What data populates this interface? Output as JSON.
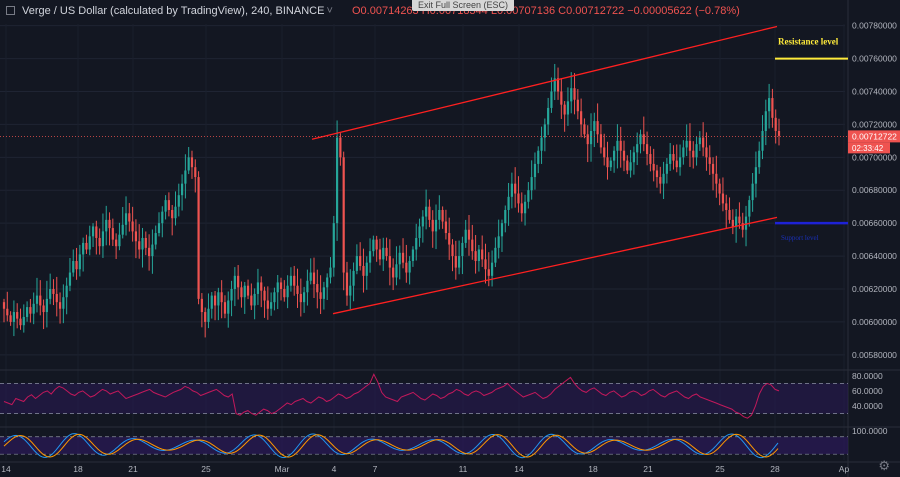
{
  "header": {
    "symbol": "Verge / US Dollar (calculated by TradingView), 240, BINANCE",
    "caret": "˅",
    "ohlc": "O0.00714263 H0.00718344 L0.00707136 C0.00712722 −0.00005622 (−0.78%)",
    "exit_fullscreen": "Exit Full Screen (ESC)"
  },
  "colors": {
    "background": "#131722",
    "up": "#26a69a",
    "down": "#ef5350",
    "channel": "#ff2020",
    "resistance": "#ffeb3b",
    "support": "#1e22d6",
    "rsi": "#c2185b",
    "stoch_k": "#2196f3",
    "stoch_d": "#ff9800",
    "band": "#2a1a55"
  },
  "chart_data": [
    {
      "type": "candlestick",
      "ylim": [
        0.00572,
        0.00781
      ],
      "y_ticks": [
        "0.00580000",
        "0.00600000",
        "0.00620000",
        "0.00640000",
        "0.00660000",
        "0.00680000",
        "0.00700000",
        "0.00720000",
        "0.00740000",
        "0.00760000",
        "0.00780000"
      ],
      "x_ticks": [
        "14",
        "18",
        "21",
        "25",
        "Mar",
        "4",
        "7",
        "11",
        "14",
        "18",
        "21",
        "25",
        "28",
        "Ap"
      ],
      "last_price": "0.00712722",
      "countdown": "02:33:42",
      "annotations": [
        {
          "label": "Resistance level",
          "value": 0.0076
        },
        {
          "label": "Support level",
          "value": 0.0066
        }
      ],
      "series_closes": [
        0.00608,
        0.00604,
        0.006,
        0.00606,
        0.00602,
        0.00598,
        0.00603,
        0.00609,
        0.00605,
        0.00611,
        0.00616,
        0.0061,
        0.00606,
        0.00614,
        0.0062,
        0.00617,
        0.00612,
        0.00608,
        0.00615,
        0.00622,
        0.0063,
        0.00637,
        0.00632,
        0.00641,
        0.00648,
        0.00644,
        0.00652,
        0.00658,
        0.00651,
        0.00646,
        0.00655,
        0.00662,
        0.00657,
        0.0065,
        0.00646,
        0.00653,
        0.00659,
        0.00666,
        0.00661,
        0.00655,
        0.00649,
        0.00644,
        0.00651,
        0.00645,
        0.0064,
        0.00647,
        0.00654,
        0.0066,
        0.00667,
        0.00674,
        0.00668,
        0.00663,
        0.0067,
        0.00677,
        0.00684,
        0.00692,
        0.007,
        0.00694,
        0.00688,
        0.00614,
        0.00606,
        0.006,
        0.00608,
        0.00616,
        0.0061,
        0.00618,
        0.00612,
        0.00605,
        0.00613,
        0.0062,
        0.00628,
        0.00621,
        0.00615,
        0.00622,
        0.00616,
        0.0061,
        0.00617,
        0.00624,
        0.00619,
        0.00613,
        0.00608,
        0.00612,
        0.00618,
        0.00624,
        0.0062,
        0.00615,
        0.00622,
        0.00628,
        0.00622,
        0.00617,
        0.00612,
        0.00618,
        0.00625,
        0.0063,
        0.00623,
        0.00618,
        0.00614,
        0.00621,
        0.00627,
        0.00633,
        0.0066,
        0.00712,
        0.007,
        0.0063,
        0.00616,
        0.00622,
        0.00631,
        0.0064,
        0.00634,
        0.00628,
        0.00636,
        0.00643,
        0.0065,
        0.00644,
        0.00638,
        0.00645,
        0.0064,
        0.00633,
        0.00627,
        0.00635,
        0.00642,
        0.00636,
        0.0063,
        0.00637,
        0.00644,
        0.00651,
        0.00658,
        0.00664,
        0.0067,
        0.00662,
        0.00655,
        0.00662,
        0.00668,
        0.00661,
        0.00654,
        0.00647,
        0.0064,
        0.00633,
        0.0064,
        0.00648,
        0.00656,
        0.0065,
        0.00643,
        0.00637,
        0.00644,
        0.00638,
        0.00632,
        0.00628,
        0.00636,
        0.00645,
        0.00652,
        0.0066,
        0.00668,
        0.00676,
        0.00684,
        0.00678,
        0.00672,
        0.00666,
        0.00673,
        0.0068,
        0.00688,
        0.00696,
        0.00704,
        0.00712,
        0.0072,
        0.0073,
        0.0074,
        0.00748,
        0.0074,
        0.00732,
        0.00726,
        0.00734,
        0.00742,
        0.00735,
        0.00728,
        0.0072,
        0.00714,
        0.00708,
        0.00716,
        0.00722,
        0.00714,
        0.00706,
        0.007,
        0.00694,
        0.00698,
        0.00704,
        0.0071,
        0.00704,
        0.00698,
        0.00692,
        0.00697,
        0.00703,
        0.00708,
        0.00714,
        0.00708,
        0.00702,
        0.00696,
        0.00692,
        0.00688,
        0.00684,
        0.0069,
        0.00696,
        0.00702,
        0.00698,
        0.00694,
        0.007,
        0.00706,
        0.0071,
        0.00704,
        0.007,
        0.00708,
        0.00712,
        0.00706,
        0.007,
        0.00696,
        0.0069,
        0.00684,
        0.00678,
        0.00672,
        0.00668,
        0.00662,
        0.00658,
        0.00664,
        0.0066,
        0.00656,
        0.00664,
        0.00674,
        0.00684,
        0.00694,
        0.00704,
        0.00716,
        0.00728,
        0.00736,
        0.00724,
        0.00716,
        0.00713
      ]
    },
    {
      "type": "line",
      "name": "RSI",
      "ylim": [
        15,
        85
      ],
      "y_ticks": [
        "80.0000",
        "60.0000",
        "40.0000"
      ],
      "dashed_levels": [
        70,
        30
      ],
      "values": [
        46,
        44,
        42,
        50,
        48,
        46,
        52,
        55,
        50,
        54,
        58,
        60,
        56,
        62,
        66,
        64,
        60,
        56,
        54,
        58,
        60,
        56,
        52,
        54,
        58,
        62,
        60,
        56,
        58,
        60,
        55,
        50,
        52,
        54,
        56,
        58,
        60,
        62,
        58,
        56,
        54,
        52,
        55,
        58,
        60,
        62,
        66,
        64,
        60,
        58,
        54,
        56,
        58,
        60,
        62,
        58,
        54,
        52,
        56,
        30,
        28,
        32,
        34,
        30,
        28,
        32,
        36,
        34,
        30,
        32,
        36,
        40,
        44,
        42,
        46,
        48,
        50,
        46,
        44,
        48,
        52,
        50,
        46,
        48,
        52,
        56,
        54,
        50,
        52,
        56,
        58,
        62,
        66,
        70,
        82,
        72,
        58,
        52,
        50,
        48,
        46,
        52,
        54,
        56,
        58,
        54,
        50,
        48,
        52,
        56,
        54,
        50,
        52,
        56,
        58,
        62,
        60,
        56,
        54,
        58,
        60,
        58,
        54,
        56,
        58,
        62,
        64,
        66,
        70,
        64,
        60,
        56,
        52,
        54,
        56,
        58,
        54,
        50,
        52,
        56,
        62,
        66,
        70,
        74,
        78,
        70,
        64,
        60,
        58,
        62,
        64,
        60,
        56,
        54,
        58,
        60,
        56,
        52,
        54,
        58,
        60,
        58,
        54,
        56,
        60,
        62,
        58,
        54,
        52,
        56,
        58,
        60,
        56,
        52,
        50,
        54,
        56,
        52,
        50,
        48,
        46,
        44,
        42,
        40,
        38,
        36,
        32,
        30,
        26,
        24,
        28,
        40,
        56,
        66,
        70,
        68,
        62,
        60
      ]
    },
    {
      "type": "line",
      "name": "Stochastic RSI",
      "ylim": [
        0,
        110
      ],
      "y_ticks": [
        "100.0000"
      ],
      "band": [
        20,
        80
      ]
    }
  ]
}
